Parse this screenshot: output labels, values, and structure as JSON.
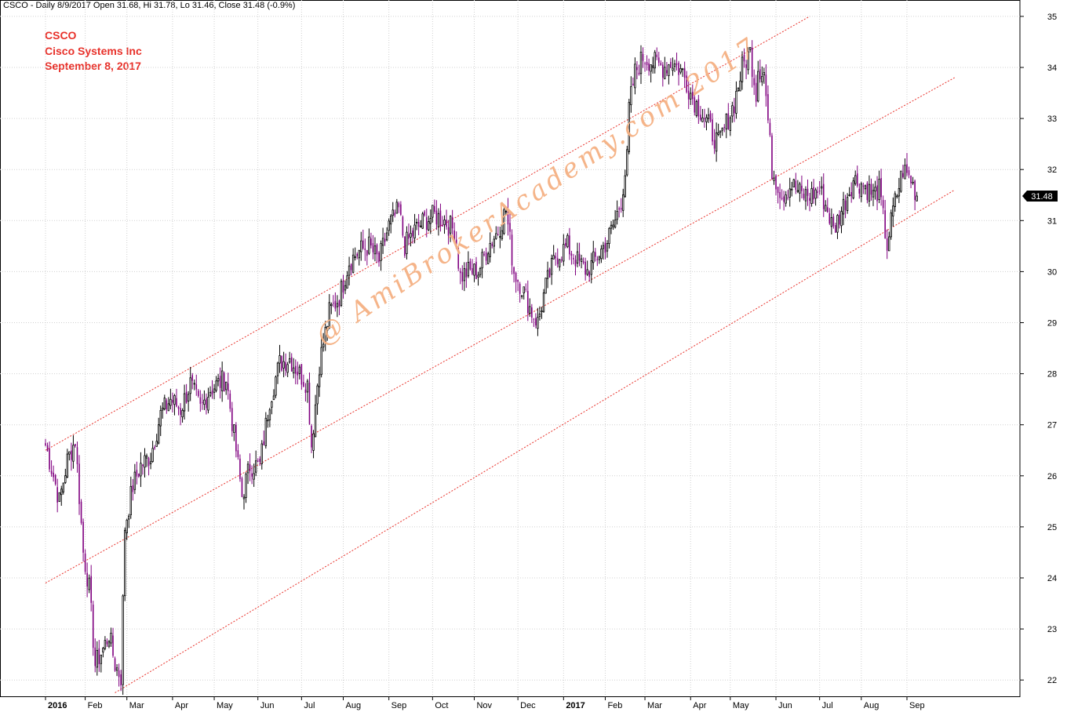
{
  "header": {
    "text": "CSCO - Daily 8/9/2017 Open 31.68, Hi 31.78, Lo 31.46, Close 31.48 (-0.9%)"
  },
  "info": {
    "ticker": "CSCO",
    "company": "Cisco Systems Inc",
    "date": "September 8, 2017"
  },
  "watermark": "@ AmiBrokerAcademy.com 2017",
  "colors": {
    "up_candle": "#000000",
    "down_candle": "#800080",
    "channel_line": "#e8312a",
    "grid": "#d0d0d0",
    "info_text": "#e8312a",
    "watermark": "#f5b183"
  },
  "chart_data": {
    "type": "candlestick",
    "title": "CSCO - Daily 8/9/2017 Open 31.68, Hi 31.78, Lo 31.46, Close 31.48 (-0.9%)",
    "ylim": [
      21.7,
      35.2
    ],
    "y_ticks": [
      22,
      23,
      24,
      25,
      26,
      27,
      28,
      29,
      30,
      31,
      32,
      33,
      34,
      35
    ],
    "y_axis_side": "right",
    "grid": true,
    "last_close": 31.48,
    "last_close_label": "31.48",
    "x_ticks": [
      {
        "label": "2016",
        "bold": true
      },
      {
        "label": "Feb"
      },
      {
        "label": "Mar"
      },
      {
        "label": "Apr"
      },
      {
        "label": "May"
      },
      {
        "label": "Jun"
      },
      {
        "label": "Jul"
      },
      {
        "label": "Aug"
      },
      {
        "label": "Sep"
      },
      {
        "label": "Oct"
      },
      {
        "label": "Nov"
      },
      {
        "label": "Dec"
      },
      {
        "label": "2017",
        "bold": true
      },
      {
        "label": "Feb"
      },
      {
        "label": "Mar"
      },
      {
        "label": "Apr"
      },
      {
        "label": "May"
      },
      {
        "label": "Jun"
      },
      {
        "label": "Jul"
      },
      {
        "label": "Aug"
      },
      {
        "label": "Sep"
      }
    ],
    "close_path": [
      [
        "2016-01-04",
        26.6
      ],
      [
        "2016-01-08",
        26.0
      ],
      [
        "2016-01-13",
        25.5
      ],
      [
        "2016-01-19",
        26.3
      ],
      [
        "2016-01-25",
        26.7
      ],
      [
        "2016-01-29",
        24.5
      ],
      [
        "2016-02-03",
        23.8
      ],
      [
        "2016-02-08",
        22.3
      ],
      [
        "2016-02-12",
        22.6
      ],
      [
        "2016-02-17",
        22.9
      ],
      [
        "2016-02-22",
        22.3
      ],
      [
        "2016-02-25",
        22.05
      ],
      [
        "2016-02-29",
        25.0
      ],
      [
        "2016-03-04",
        25.8
      ],
      [
        "2016-03-10",
        26.2
      ],
      [
        "2016-03-17",
        26.4
      ],
      [
        "2016-03-24",
        27.2
      ],
      [
        "2016-03-31",
        27.5
      ],
      [
        "2016-04-07",
        27.3
      ],
      [
        "2016-04-14",
        27.8
      ],
      [
        "2016-04-21",
        27.3
      ],
      [
        "2016-04-28",
        27.7
      ],
      [
        "2016-05-04",
        27.8
      ],
      [
        "2016-05-10",
        27.9
      ],
      [
        "2016-05-17",
        26.5
      ],
      [
        "2016-05-20",
        25.6
      ],
      [
        "2016-05-26",
        26.2
      ],
      [
        "2016-06-02",
        26.2
      ],
      [
        "2016-06-09",
        27.5
      ],
      [
        "2016-06-16",
        28.2
      ],
      [
        "2016-06-23",
        28.3
      ],
      [
        "2016-06-30",
        28.0
      ],
      [
        "2016-07-06",
        27.8
      ],
      [
        "2016-07-08",
        26.6
      ],
      [
        "2016-07-14",
        28.2
      ],
      [
        "2016-07-21",
        29.2
      ],
      [
        "2016-07-28",
        29.5
      ],
      [
        "2016-08-04",
        30.2
      ],
      [
        "2016-08-11",
        30.4
      ],
      [
        "2016-08-18",
        30.5
      ],
      [
        "2016-08-25",
        30.2
      ],
      [
        "2016-09-01",
        30.9
      ],
      [
        "2016-09-08",
        31.2
      ],
      [
        "2016-09-13",
        30.5
      ],
      [
        "2016-09-20",
        30.8
      ],
      [
        "2016-09-27",
        31.0
      ],
      [
        "2016-10-04",
        31.1
      ],
      [
        "2016-10-11",
        31.0
      ],
      [
        "2016-10-18",
        30.8
      ],
      [
        "2016-10-21",
        29.9
      ],
      [
        "2016-10-27",
        30.0
      ],
      [
        "2016-11-03",
        30.0
      ],
      [
        "2016-11-10",
        30.5
      ],
      [
        "2016-11-17",
        30.8
      ],
      [
        "2016-11-23",
        31.2
      ],
      [
        "2016-11-29",
        30.0
      ],
      [
        "2016-12-05",
        29.7
      ],
      [
        "2016-12-12",
        29.2
      ],
      [
        "2016-12-15",
        29.0
      ],
      [
        "2016-12-21",
        29.7
      ],
      [
        "2016-12-28",
        30.3
      ],
      [
        "2017-01-05",
        30.5
      ],
      [
        "2017-01-12",
        30.2
      ],
      [
        "2017-01-19",
        30.0
      ],
      [
        "2017-01-26",
        30.3
      ],
      [
        "2017-02-02",
        30.6
      ],
      [
        "2017-02-08",
        31.0
      ],
      [
        "2017-02-13",
        31.4
      ],
      [
        "2017-02-16",
        32.2
      ],
      [
        "2017-02-17",
        33.2
      ],
      [
        "2017-02-22",
        33.9
      ],
      [
        "2017-02-28",
        34.2
      ],
      [
        "2017-03-07",
        34.1
      ],
      [
        "2017-03-14",
        34.0
      ],
      [
        "2017-03-21",
        34.1
      ],
      [
        "2017-03-28",
        33.9
      ],
      [
        "2017-04-04",
        33.4
      ],
      [
        "2017-04-11",
        33.1
      ],
      [
        "2017-04-18",
        32.7
      ],
      [
        "2017-04-21",
        32.5
      ],
      [
        "2017-04-27",
        32.9
      ],
      [
        "2017-05-03",
        33.3
      ],
      [
        "2017-05-09",
        34.0
      ],
      [
        "2017-05-15",
        34.3
      ],
      [
        "2017-05-18",
        33.5
      ],
      [
        "2017-05-19",
        34.0
      ],
      [
        "2017-05-24",
        33.9
      ],
      [
        "2017-05-30",
        32.0
      ],
      [
        "2017-06-06",
        31.5
      ],
      [
        "2017-06-13",
        31.7
      ],
      [
        "2017-06-20",
        31.5
      ],
      [
        "2017-06-27",
        31.5
      ],
      [
        "2017-07-03",
        31.6
      ],
      [
        "2017-07-07",
        31.2
      ],
      [
        "2017-07-12",
        30.8
      ],
      [
        "2017-07-19",
        31.3
      ],
      [
        "2017-07-26",
        31.8
      ],
      [
        "2017-08-02",
        31.7
      ],
      [
        "2017-08-09",
        31.5
      ],
      [
        "2017-08-14",
        31.6
      ],
      [
        "2017-08-18",
        30.5
      ],
      [
        "2017-08-23",
        31.2
      ],
      [
        "2017-08-30",
        32.0
      ],
      [
        "2017-09-05",
        31.8
      ],
      [
        "2017-09-08",
        31.48
      ]
    ],
    "channel_lines": [
      {
        "name": "upper",
        "start": [
          "2016-01-04",
          26.5
        ],
        "end": [
          "2017-06-24",
          35.0
        ]
      },
      {
        "name": "middle",
        "start": [
          "2016-01-04",
          23.9
        ],
        "end": [
          "2017-10-05",
          33.8
        ]
      },
      {
        "name": "lower",
        "start": [
          "2016-02-20",
          21.75
        ],
        "end": [
          "2017-10-05",
          31.6
        ]
      }
    ]
  }
}
